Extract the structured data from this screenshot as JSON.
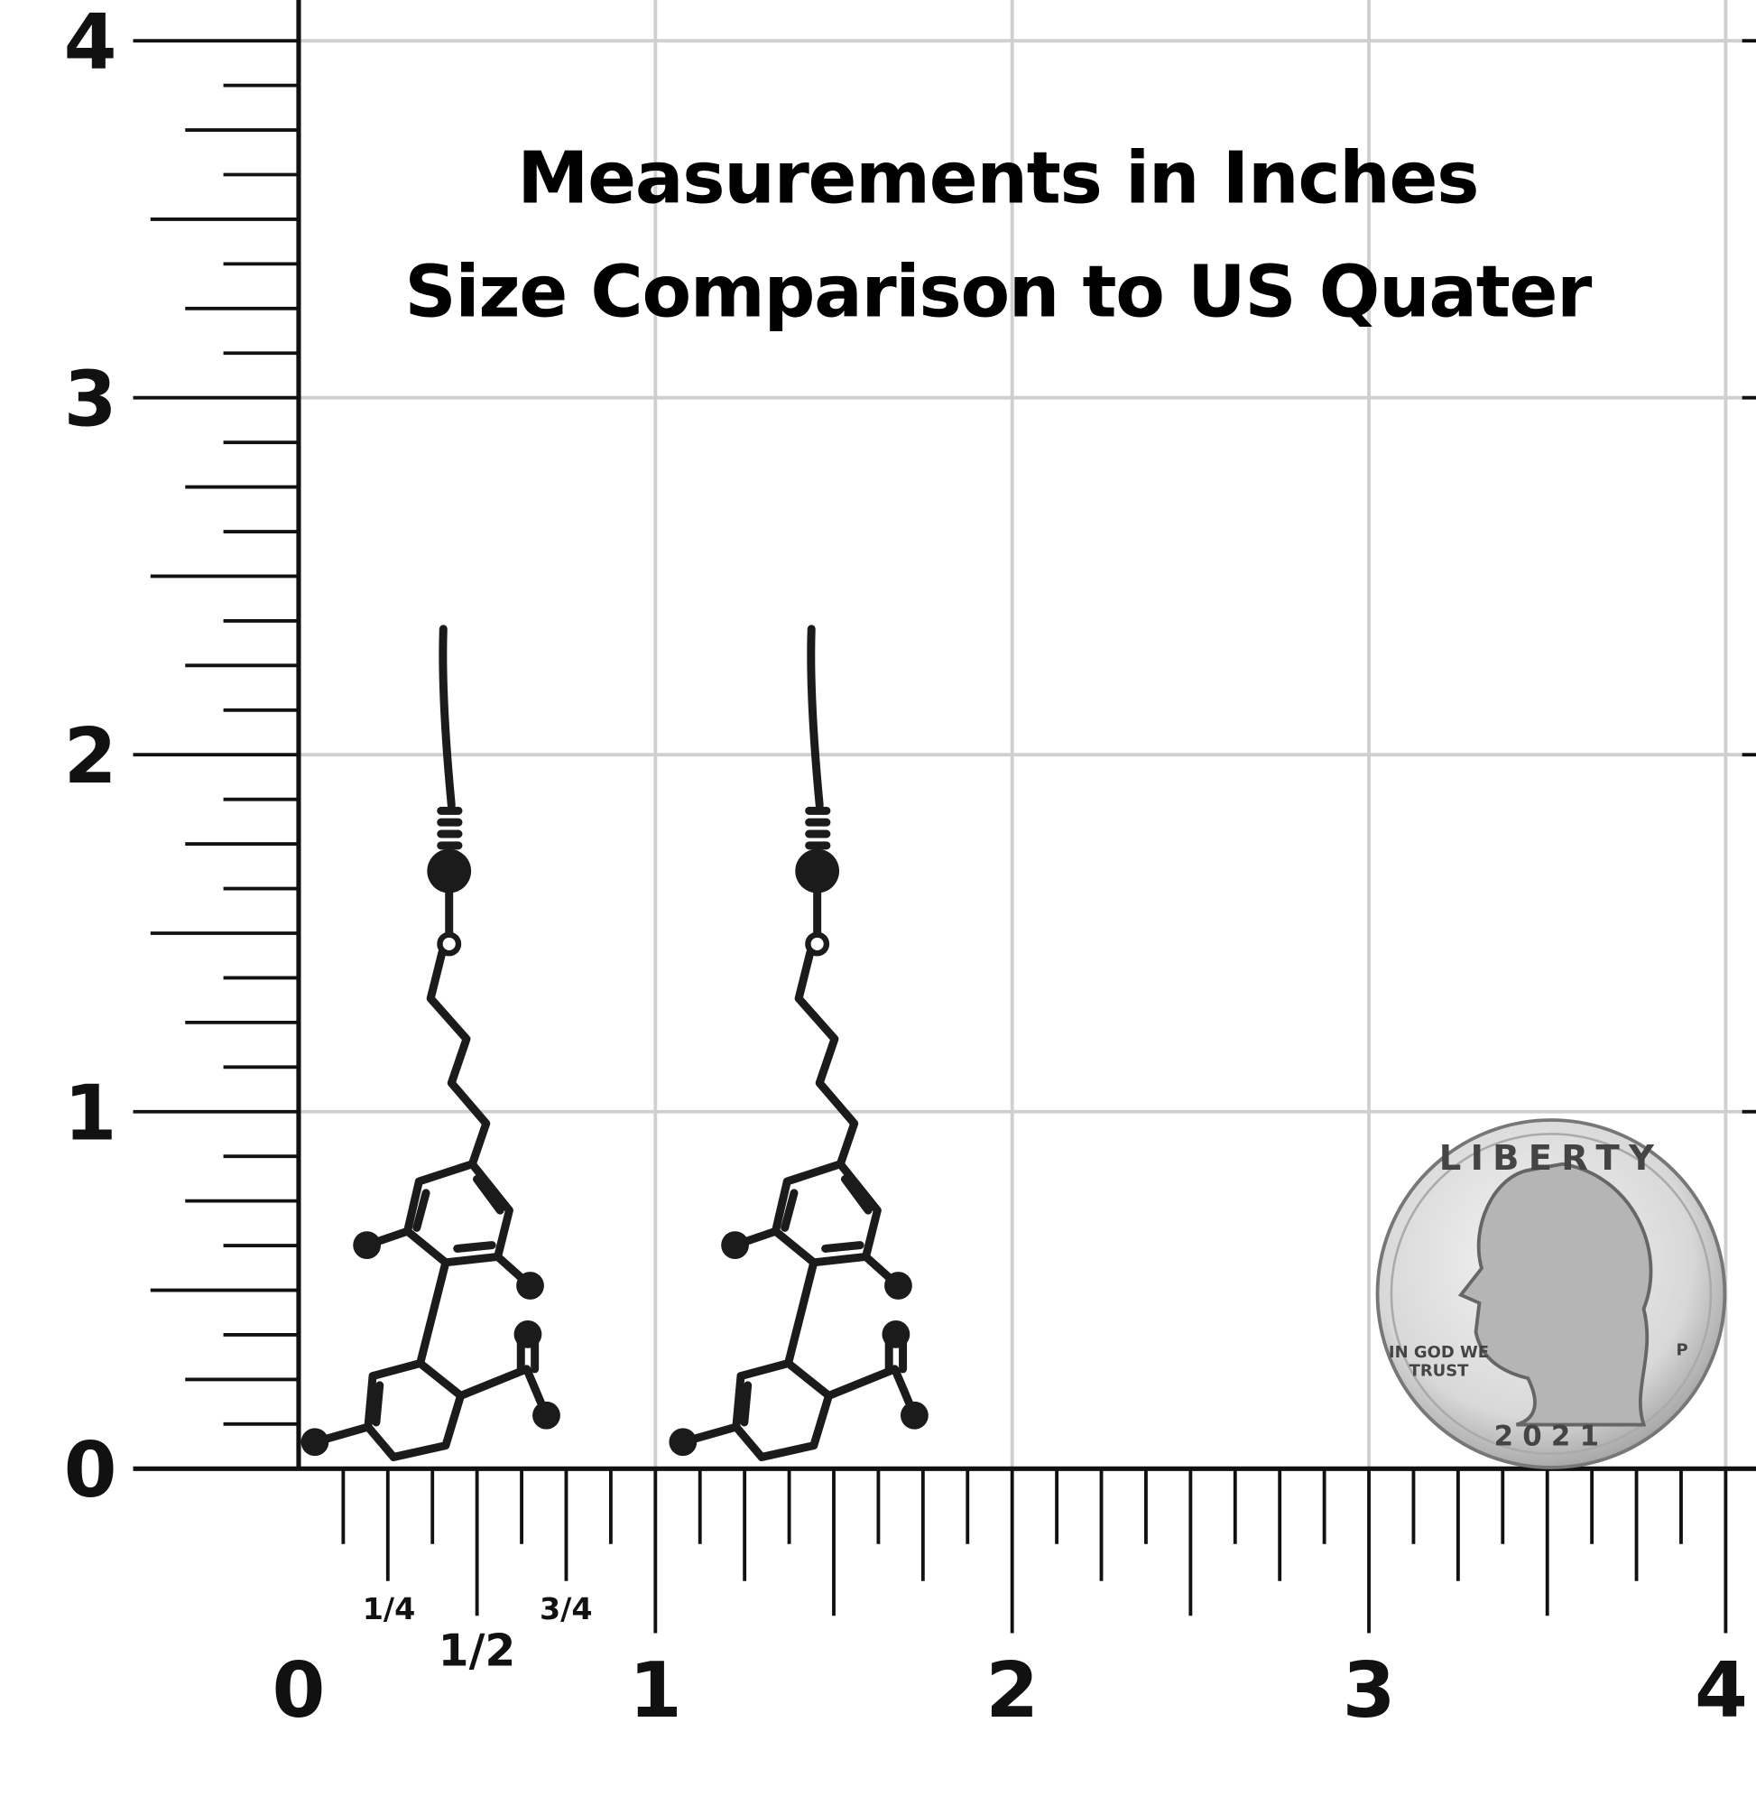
{
  "title": {
    "line1": "Measurements in Inches",
    "line2": "Size Comparison to US Quater"
  },
  "vertical_ruler": {
    "labels": [
      "0",
      "1",
      "2",
      "3",
      "4"
    ]
  },
  "horizontal_ruler": {
    "labels": [
      "0",
      "1",
      "2",
      "3",
      "4"
    ],
    "fractions": [
      "1/4",
      "1/2",
      "3/4"
    ]
  },
  "coin": {
    "top": "LIBERTY",
    "motto_1": "IN GOD WE",
    "motto_2": "TRUST",
    "year": "2021",
    "mint": "P"
  }
}
